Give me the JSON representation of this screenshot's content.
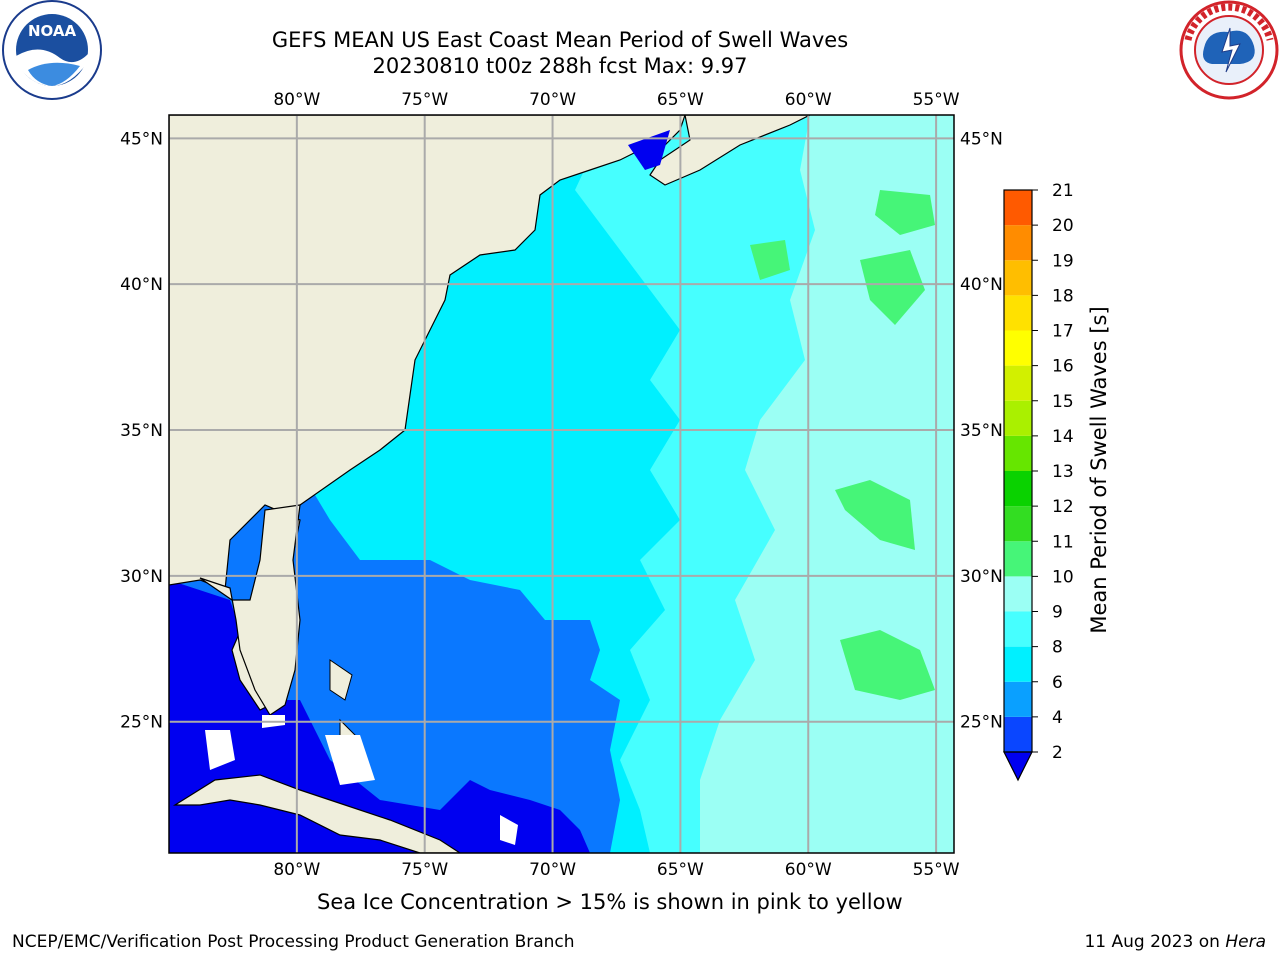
{
  "title": {
    "line1": "GEFS MEAN US East Coast Mean Period of Swell Waves",
    "line2": "20230810 t00z 288h fcst   Max: 9.97"
  },
  "logos": {
    "left": "noaa-logo",
    "left_text": "NOAA",
    "right": "national-weather-service-logo"
  },
  "map": {
    "lon_labels": [
      "80°W",
      "75°W",
      "70°W",
      "65°W",
      "60°W",
      "55°W"
    ],
    "lon_values": [
      -80,
      -75,
      -70,
      -65,
      -60,
      -55
    ],
    "lat_labels": [
      "45°N",
      "40°N",
      "35°N",
      "30°N",
      "25°N"
    ],
    "lat_values": [
      45,
      40,
      35,
      30,
      25
    ],
    "lon_range": [
      -85,
      -54.3
    ],
    "lat_range": [
      20.5,
      45.8
    ],
    "grid": true,
    "land_color": "#efeedc",
    "coastline_color": "#000000"
  },
  "colorbar": {
    "label": "Mean Period of Swell Waves [s]",
    "ticks": [
      "2",
      "4",
      "6",
      "8",
      "9",
      "10",
      "11",
      "12",
      "13",
      "14",
      "15",
      "16",
      "17",
      "18",
      "19",
      "20",
      "21"
    ],
    "colors": [
      "#0a46ff",
      "#0aa0ff",
      "#00f0ff",
      "#46ffff",
      "#9bfff4",
      "#46f578",
      "#33dd22",
      "#0ad200",
      "#66e600",
      "#aaf000",
      "#d2f000",
      "#ffff00",
      "#ffe100",
      "#ffbe00",
      "#ff8c00",
      "#ff5a00",
      "#ff1e00"
    ],
    "under_color": "#0000f0",
    "position": "right"
  },
  "field_colors": {
    "lt2": "#0000f0",
    "2-4": "#0a78ff",
    "4-6": "#00f0ff",
    "6-8": "#46ffff",
    "8-9": "#9bfff4",
    "9-10": "#46f578"
  },
  "footer": {
    "note": "Sea Ice Concentration > 15% is shown in pink to yellow",
    "left": "NCEP/EMC/Verification Post Processing Product Generation Branch",
    "right_date": "11 Aug 2023 on ",
    "right_host": "Hera"
  }
}
